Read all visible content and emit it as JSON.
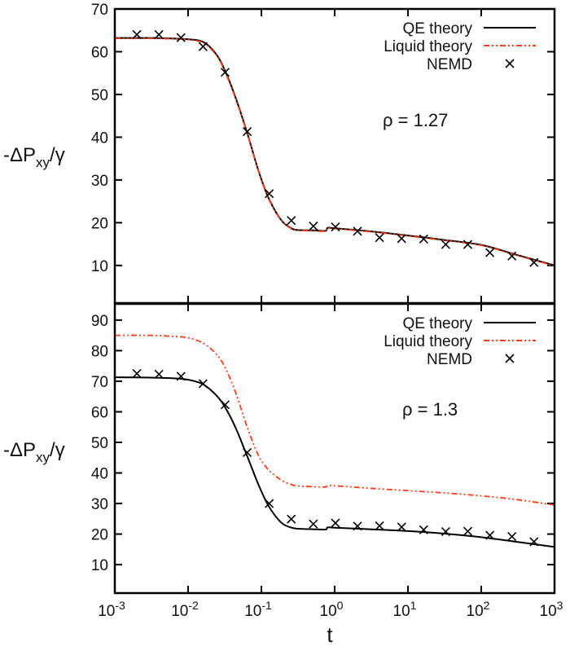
{
  "chart_data": [
    {
      "type": "line",
      "xscale": "log",
      "xlim": [
        0.001,
        1000
      ],
      "ylim": [
        1.2,
        70
      ],
      "xlabel": "",
      "ylabel": "-ΔP_xy/γ",
      "annotation": "ρ = 1.27",
      "yticks": [
        10,
        20,
        30,
        40,
        50,
        60,
        70
      ],
      "legend": "top-right",
      "series": [
        {
          "name": "QE theory",
          "style": "solid",
          "color": "#000000",
          "x": [
            0.001,
            0.003,
            0.006,
            0.01,
            0.016,
            0.024,
            0.032,
            0.045,
            0.064,
            0.09,
            0.12,
            0.16,
            0.2,
            0.25,
            0.3,
            0.5,
            0.75,
            0.8,
            1,
            3,
            10,
            30,
            100,
            300,
            1000
          ],
          "y": [
            63.2,
            63.2,
            63.1,
            62.9,
            62.3,
            59.5,
            55.5,
            49,
            41,
            32.5,
            26.5,
            22.3,
            20,
            18.8,
            18.3,
            18.2,
            18.1,
            18.8,
            18.7,
            18,
            17,
            16,
            14.8,
            12.5,
            10
          ]
        },
        {
          "name": "Liquid theory",
          "style": "dash-dot-dot",
          "color": "#ff3a17",
          "x": [
            0.001,
            0.003,
            0.006,
            0.01,
            0.016,
            0.024,
            0.032,
            0.045,
            0.064,
            0.09,
            0.12,
            0.16,
            0.2,
            0.25,
            0.3,
            0.5,
            0.75,
            0.8,
            1,
            3,
            10,
            30,
            100,
            300,
            1000
          ],
          "y": [
            63.1,
            63.1,
            63,
            62.8,
            62.1,
            59.3,
            55.3,
            48.8,
            40.9,
            32.4,
            26.4,
            22.2,
            20,
            18.7,
            18.2,
            18.1,
            18,
            18.7,
            18.6,
            17.9,
            16.9,
            15.9,
            14.7,
            12.4,
            9.9
          ]
        },
        {
          "name": "NEMD",
          "style": "markers-x",
          "color": "#000000",
          "x": [
            0.002,
            0.004,
            0.008,
            0.016,
            0.032,
            0.064,
            0.128,
            0.256,
            0.512,
            1.024,
            2.048,
            4.096,
            8.192,
            16.384,
            32.768,
            65.536,
            131.072,
            262.144,
            524.288
          ],
          "y": [
            64,
            64,
            63.3,
            61.2,
            55.2,
            41.3,
            26.8,
            20.5,
            19.2,
            19,
            18,
            16.5,
            16.3,
            16.2,
            14.9,
            14.9,
            13,
            12.2,
            10.7
          ]
        }
      ]
    },
    {
      "type": "line",
      "xscale": "log",
      "xlim": [
        0.001,
        1000
      ],
      "ylim": [
        0.7,
        95.3
      ],
      "xlabel": "t",
      "ylabel": "-ΔP_xy/γ",
      "annotation": "ρ = 1.3",
      "yticks": [
        10,
        20,
        30,
        40,
        50,
        60,
        70,
        80,
        90
      ],
      "xticks": [
        "10-3",
        "10-2",
        "10-1",
        "100",
        "101",
        "102",
        "103"
      ],
      "legend": "top-right",
      "series": [
        {
          "name": "QE theory",
          "style": "solid",
          "color": "#000000",
          "x": [
            0.001,
            0.003,
            0.006,
            0.01,
            0.016,
            0.024,
            0.032,
            0.045,
            0.064,
            0.09,
            0.12,
            0.16,
            0.2,
            0.25,
            0.3,
            0.5,
            0.75,
            0.8,
            1,
            3,
            10,
            30,
            100,
            300,
            1000
          ],
          "y": [
            71.3,
            71.2,
            71,
            70.5,
            69,
            65.5,
            61.5,
            54.5,
            45.5,
            36.5,
            30,
            25.5,
            23.2,
            22.2,
            21.8,
            21.6,
            21.5,
            22.2,
            22.1,
            21.6,
            21,
            20.2,
            19,
            17.5,
            15.8
          ]
        },
        {
          "name": "Liquid theory",
          "style": "dash-dot-dot",
          "color": "#ff3a17",
          "x": [
            0.001,
            0.003,
            0.006,
            0.01,
            0.016,
            0.024,
            0.032,
            0.045,
            0.064,
            0.09,
            0.12,
            0.16,
            0.2,
            0.25,
            0.3,
            0.5,
            0.75,
            0.8,
            1,
            3,
            10,
            30,
            100,
            300,
            1000
          ],
          "y": [
            85,
            85,
            84.7,
            84.2,
            82.5,
            79,
            74.5,
            66,
            55,
            46,
            41.5,
            38.8,
            37.2,
            36.3,
            35.8,
            35.5,
            35.4,
            35.9,
            35.8,
            35,
            34.2,
            33.5,
            32.5,
            31.3,
            29.5
          ]
        },
        {
          "name": "NEMD",
          "style": "markers-x",
          "color": "#000000",
          "x": [
            0.002,
            0.004,
            0.008,
            0.016,
            0.032,
            0.064,
            0.128,
            0.256,
            0.512,
            1.024,
            2.048,
            4.096,
            8.192,
            16.384,
            32.768,
            65.536,
            131.072,
            262.144,
            524.288
          ],
          "y": [
            72.5,
            72.3,
            71.6,
            69.2,
            62.3,
            46.7,
            30,
            24.9,
            23.3,
            23.6,
            22.6,
            22.7,
            22.3,
            21.4,
            20.8,
            20.9,
            19.6,
            19.2,
            17.5
          ]
        }
      ]
    }
  ]
}
